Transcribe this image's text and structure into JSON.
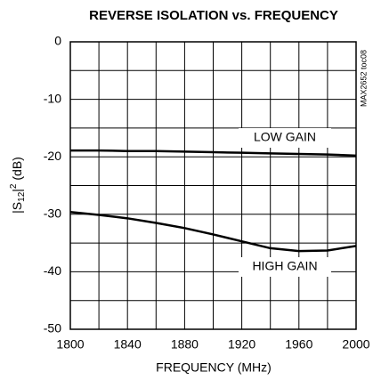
{
  "chart_data": {
    "type": "line",
    "title": "REVERSE ISOLATION vs. FREQUENCY",
    "xlabel": "FREQUENCY (MHz)",
    "ylabel": {
      "lead": "|S",
      "sub": "12",
      "mid": "|",
      "sup": "2",
      "tail": " (dB)"
    },
    "note": "MAX2652 toc08",
    "x": [
      1800,
      1820,
      1840,
      1860,
      1880,
      1900,
      1920,
      1940,
      1960,
      1980,
      2000
    ],
    "series": [
      {
        "name": "LOW GAIN",
        "color": "#000000",
        "values": [
          -18.9,
          -18.9,
          -19,
          -19,
          -19.1,
          -19.2,
          -19.3,
          -19.4,
          -19.5,
          -19.6,
          -19.8
        ]
      },
      {
        "name": "HIGH GAIN",
        "color": "#000000",
        "values": [
          -29.6,
          -30.1,
          -30.7,
          -31.5,
          -32.4,
          -33.5,
          -34.7,
          -35.9,
          -36.4,
          -36.3,
          -35.5
        ]
      }
    ],
    "xlim": [
      1800,
      2000
    ],
    "xticks": [
      1800,
      1840,
      1880,
      1920,
      1960,
      2000
    ],
    "xminor": [
      1820,
      1860,
      1900,
      1940,
      1980
    ],
    "ylim": [
      -50,
      0
    ],
    "yticks": [
      0,
      -10,
      -20,
      -30,
      -40,
      -50
    ],
    "yminor": [
      -5,
      -15,
      -25,
      -35,
      -45
    ],
    "grid": true
  }
}
